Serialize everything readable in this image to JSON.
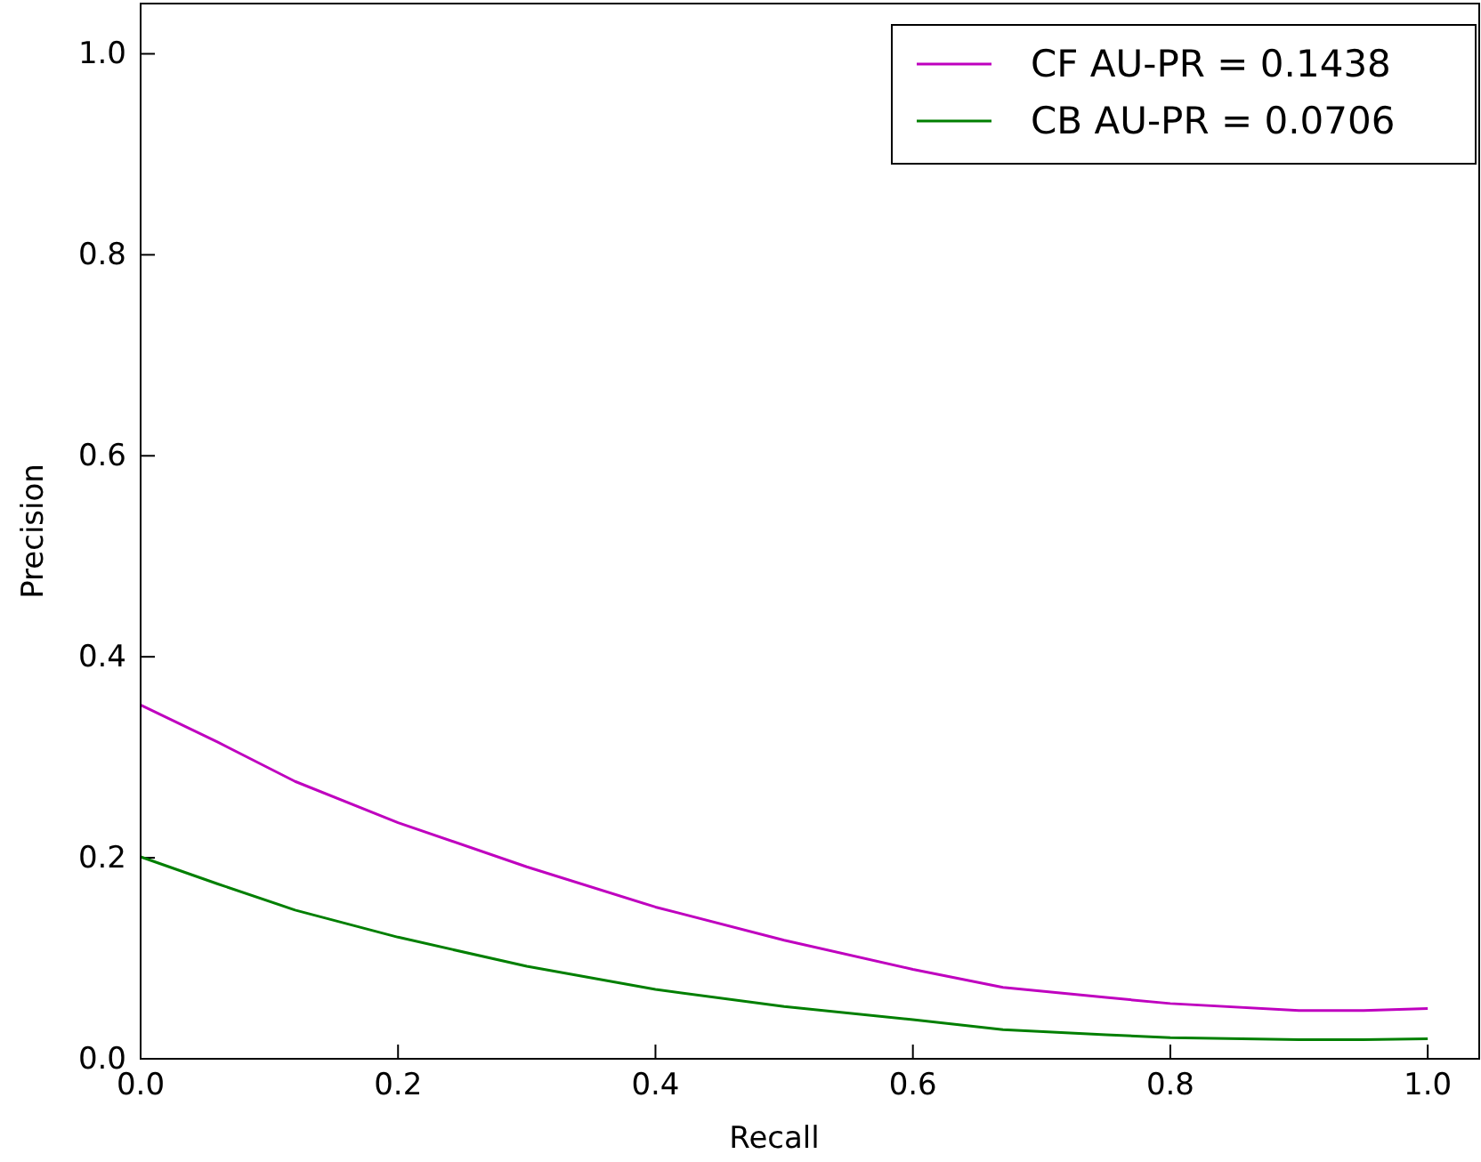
{
  "chart_data": {
    "type": "line",
    "xlabel": "Recall",
    "ylabel": "Precision",
    "xlim": [
      0,
      1.04
    ],
    "ylim": [
      0,
      1.05
    ],
    "xticks": [
      {
        "value": 0,
        "label": "0.0"
      },
      0.2,
      0.4,
      0.6,
      0.8,
      {
        "value": 1,
        "label": "1.0"
      }
    ],
    "yticks": [
      {
        "value": 0,
        "label": "0.0"
      },
      0.2,
      0.4,
      0.6,
      0.8,
      {
        "value": 1,
        "label": "1.0"
      }
    ],
    "grid": false,
    "legend": "top right",
    "marker": "none",
    "line_style": "solid",
    "series": [
      {
        "name": "CF AU-PR = 0.1438",
        "color": "#bf00bf",
        "x": [
          0,
          0.06,
          0.12,
          0.2,
          0.3,
          0.4,
          0.5,
          0.6,
          0.67,
          0.75,
          0.8,
          0.9,
          0.95,
          1.0
        ],
        "values": [
          0.352,
          0.315,
          0.276,
          0.235,
          0.191,
          0.151,
          0.118,
          0.089,
          0.071,
          0.061,
          0.055,
          0.048,
          0.048,
          0.05
        ]
      },
      {
        "name": "CB AU-PR = 0.0706",
        "color": "#007f00",
        "x": [
          0,
          0.06,
          0.12,
          0.2,
          0.3,
          0.4,
          0.5,
          0.6,
          0.67,
          0.75,
          0.8,
          0.9,
          0.95,
          1.0
        ],
        "values": [
          0.201,
          0.174,
          0.148,
          0.121,
          0.092,
          0.069,
          0.052,
          0.039,
          0.029,
          0.024,
          0.021,
          0.019,
          0.019,
          0.02
        ]
      }
    ]
  }
}
